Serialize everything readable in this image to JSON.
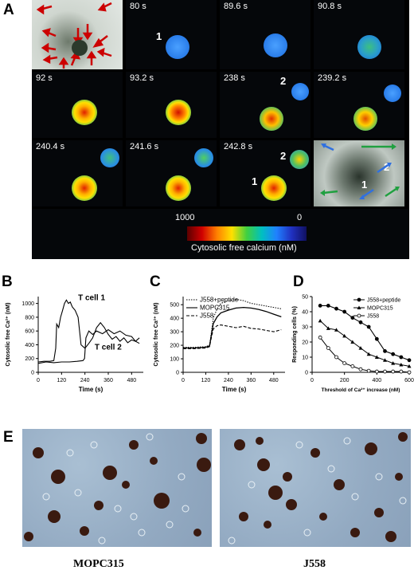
{
  "panels": {
    "A": {
      "letter": "A",
      "tiles": [
        {
          "time": ""
        },
        {
          "time": "80 s"
        },
        {
          "time": "89.6 s"
        },
        {
          "time": "90.8 s"
        },
        {
          "time": "92 s"
        },
        {
          "time": "93.2 s"
        },
        {
          "time": "238 s"
        },
        {
          "time": "239.2 s"
        },
        {
          "time": "240.4 s"
        },
        {
          "time": "241.6 s"
        },
        {
          "time": "242.8 s"
        },
        {
          "time": ""
        }
      ],
      "cell_labels": {
        "one": "1",
        "two": "2"
      },
      "calibration": {
        "max": "1000",
        "min": "0",
        "label": "Cytosolic free calcium (nM)"
      }
    },
    "B": {
      "letter": "B"
    },
    "C": {
      "letter": "C"
    },
    "D": {
      "letter": "D"
    },
    "E": {
      "letter": "E",
      "captions": [
        "MOPC315",
        "J558"
      ]
    }
  },
  "chart_data": [
    {
      "type": "line",
      "panel": "B",
      "xlabel": "Time (s)",
      "ylabel": "Cytosolic free Ca²⁺ (nM)",
      "xlim": [
        0,
        540
      ],
      "ylim": [
        0,
        1100
      ],
      "xticks": [
        0,
        120,
        240,
        360,
        480
      ],
      "yticks": [
        0,
        200,
        400,
        600,
        800,
        1000
      ],
      "series": [
        {
          "name": "T cell 1",
          "x": [
            0,
            30,
            60,
            80,
            90,
            95,
            105,
            115,
            125,
            135,
            145,
            155,
            165,
            175,
            190,
            205,
            220,
            240,
            260,
            280,
            300,
            320,
            340,
            360,
            380,
            400,
            420,
            440,
            460,
            480,
            500,
            520
          ],
          "y": [
            150,
            160,
            160,
            170,
            350,
            700,
            650,
            800,
            900,
            1000,
            1050,
            1000,
            1020,
            950,
            900,
            800,
            400,
            350,
            420,
            500,
            650,
            720,
            650,
            550,
            480,
            520,
            450,
            500,
            430,
            470,
            450,
            500
          ]
        },
        {
          "name": "T cell 2",
          "x": [
            0,
            40,
            80,
            120,
            160,
            200,
            230,
            238,
            245,
            260,
            280,
            300,
            330,
            360,
            390,
            420,
            450,
            480,
            500,
            520
          ],
          "y": [
            130,
            150,
            140,
            150,
            150,
            160,
            170,
            200,
            500,
            600,
            550,
            600,
            560,
            620,
            560,
            600,
            540,
            520,
            450,
            420
          ]
        }
      ]
    },
    {
      "type": "line",
      "panel": "C",
      "xlabel": "Time (s)",
      "ylabel": "Cytosolic free Ca²⁺ (nM)",
      "xlim": [
        0,
        540
      ],
      "ylim": [
        0,
        560
      ],
      "xticks": [
        0,
        120,
        240,
        360,
        480
      ],
      "yticks": [
        0,
        100,
        200,
        300,
        400,
        500
      ],
      "legend": "top-left",
      "series": [
        {
          "name": "J558+peptide",
          "x": [
            0,
            60,
            120,
            140,
            150,
            160,
            180,
            200,
            240,
            280,
            320,
            360,
            400,
            440,
            480,
            520
          ],
          "y": [
            185,
            185,
            190,
            200,
            300,
            400,
            470,
            510,
            530,
            540,
            530,
            510,
            500,
            490,
            480,
            470
          ]
        },
        {
          "name": "MOPC315",
          "x": [
            0,
            60,
            120,
            140,
            150,
            160,
            180,
            200,
            240,
            280,
            320,
            360,
            400,
            440,
            480,
            520
          ],
          "y": [
            180,
            180,
            185,
            195,
            280,
            360,
            410,
            440,
            460,
            475,
            480,
            475,
            465,
            450,
            430,
            410
          ]
        },
        {
          "name": "J558",
          "x": [
            0,
            60,
            120,
            140,
            150,
            160,
            180,
            200,
            240,
            280,
            320,
            360,
            400,
            440,
            480,
            520
          ],
          "y": [
            175,
            175,
            180,
            190,
            260,
            320,
            345,
            350,
            340,
            330,
            340,
            325,
            320,
            310,
            300,
            315
          ]
        }
      ]
    },
    {
      "type": "line",
      "panel": "D",
      "xlabel": "Threshold of Ca²⁺ increase (nM)",
      "ylabel": "Responding cells (%)",
      "xlim": [
        0,
        600
      ],
      "ylim": [
        0,
        50
      ],
      "xticks": [
        0,
        200,
        400,
        600
      ],
      "yticks": [
        0,
        10,
        20,
        30,
        40,
        50
      ],
      "legend": "top-right",
      "series": [
        {
          "name": "J558+peptide",
          "marker": "filled-circle",
          "x": [
            50,
            100,
            150,
            200,
            250,
            300,
            350,
            400,
            450,
            500,
            550,
            600
          ],
          "y": [
            44,
            44,
            42,
            40,
            36,
            33,
            30,
            22,
            14,
            12,
            10,
            8
          ]
        },
        {
          "name": "MOPC315",
          "marker": "triangle",
          "x": [
            50,
            100,
            150,
            200,
            250,
            300,
            350,
            400,
            450,
            500,
            550,
            600
          ],
          "y": [
            34,
            29,
            28,
            24,
            20,
            16,
            12,
            10,
            8,
            6,
            5,
            4
          ]
        },
        {
          "name": "J558",
          "marker": "open-circle",
          "x": [
            50,
            100,
            150,
            200,
            250,
            300,
            350,
            400,
            450,
            500,
            550,
            600
          ],
          "y": [
            23,
            16,
            10,
            6,
            4,
            2,
            1,
            0.5,
            0.5,
            0.5,
            0.5,
            0
          ]
        }
      ]
    }
  ]
}
